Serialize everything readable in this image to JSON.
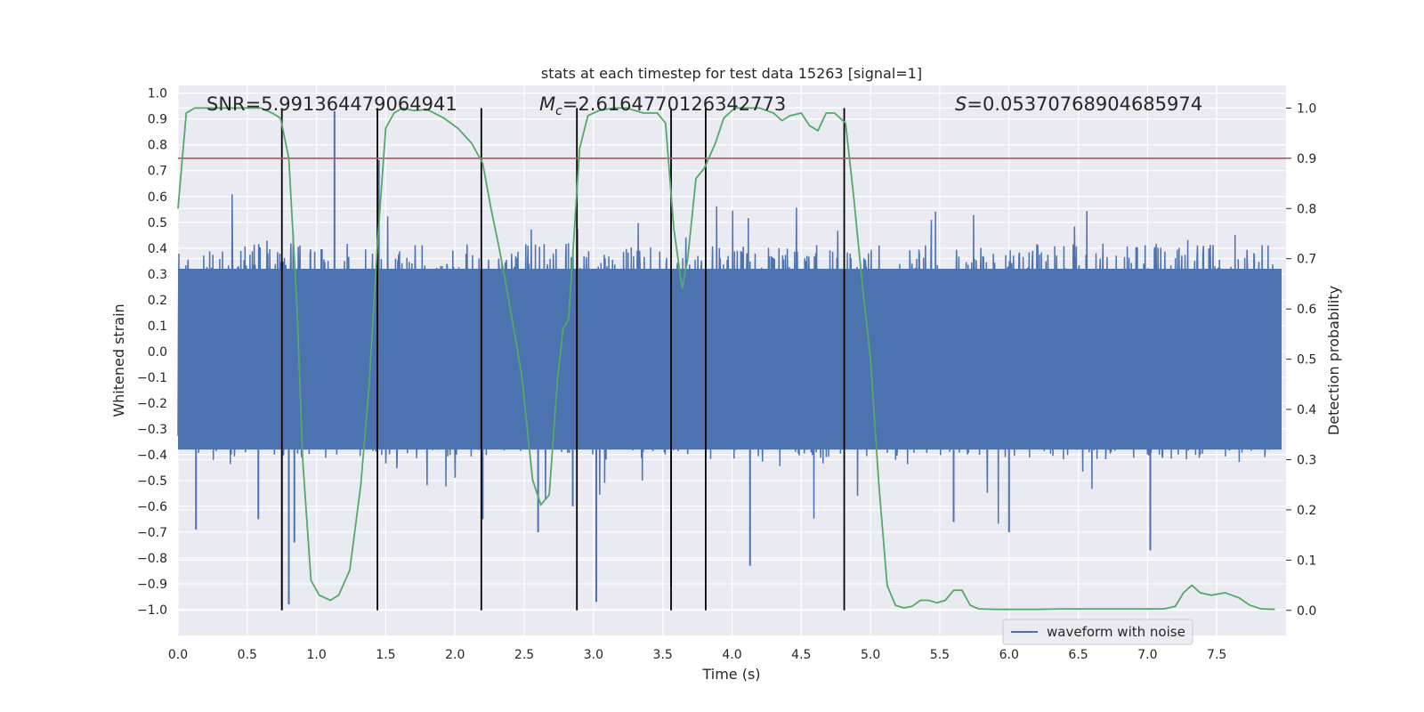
{
  "chart_data": {
    "type": "line",
    "title": "stats at each timestep for test data 15263 [signal=1]",
    "xlabel": "Time (s)",
    "ylabel": "Whitened strain",
    "y2label": "Detection probability",
    "xlim": [
      0.0,
      8.0
    ],
    "ylim": [
      -1.1,
      1.03
    ],
    "y2lim": [
      -0.05,
      1.045
    ],
    "xticks": [
      "0.0",
      "0.5",
      "1.0",
      "1.5",
      "2.0",
      "2.5",
      "3.0",
      "3.5",
      "4.0",
      "4.5",
      "5.0",
      "5.5",
      "6.0",
      "6.5",
      "7.0",
      "7.5"
    ],
    "yticks": [
      "-1.0",
      "-0.9",
      "-0.8",
      "-0.7",
      "-0.6",
      "-0.5",
      "-0.4",
      "-0.3",
      "-0.2",
      "-0.1",
      "0.0",
      "0.1",
      "0.2",
      "0.3",
      "0.4",
      "0.5",
      "0.6",
      "0.7",
      "0.8",
      "0.9",
      "1.0"
    ],
    "y2ticks": [
      "0.0",
      "0.1",
      "0.2",
      "0.3",
      "0.4",
      "0.5",
      "0.6",
      "0.7",
      "0.8",
      "0.9",
      "1.0"
    ],
    "grid": true,
    "legend_placement": "lower-right",
    "annotations": {
      "snr": "SNR=5.991364479064941",
      "mc_symbol": "M",
      "mc_sub": "c",
      "mc_value": "=2.6164770126342773",
      "s_symbol": "S",
      "s_value": "=0.05370768904685974"
    },
    "series": [
      {
        "name": "waveform with noise",
        "axis": "left",
        "color": "#4c72b0",
        "kind": "noise",
        "envelope": 0.42,
        "extreme_peaks": [
          [
            0.75,
            -1.0
          ],
          [
            0.8,
            -0.98
          ],
          [
            0.84,
            -0.74
          ],
          [
            1.13,
            0.93
          ],
          [
            1.45,
            0.74
          ],
          [
            2.2,
            -0.65
          ],
          [
            2.6,
            -0.7
          ],
          [
            2.85,
            -0.6
          ],
          [
            3.02,
            -0.97
          ],
          [
            3.56,
            -0.91
          ],
          [
            4.13,
            -0.83
          ],
          [
            6.0,
            -0.7
          ],
          [
            7.02,
            -0.77
          ],
          [
            0.13,
            -0.69
          ],
          [
            0.58,
            -0.65
          ],
          [
            5.6,
            -0.66
          ]
        ]
      },
      {
        "name": "",
        "axis": "right",
        "color": "#55a868",
        "x": [
          0.0,
          0.06,
          0.12,
          0.2,
          0.3,
          0.4,
          0.5,
          0.6,
          0.68,
          0.74,
          0.8,
          0.86,
          0.9,
          0.96,
          1.02,
          1.1,
          1.16,
          1.24,
          1.32,
          1.38,
          1.44,
          1.5,
          1.56,
          1.62,
          1.7,
          1.8,
          1.92,
          2.02,
          2.12,
          2.2,
          2.26,
          2.32,
          2.4,
          2.48,
          2.56,
          2.62,
          2.68,
          2.74,
          2.78,
          2.82,
          2.9,
          2.96,
          3.04,
          3.14,
          3.24,
          3.36,
          3.46,
          3.52,
          3.58,
          3.64,
          3.68,
          3.74,
          3.8,
          3.88,
          3.94,
          4.02,
          4.1,
          4.2,
          4.3,
          4.36,
          4.42,
          4.5,
          4.56,
          4.62,
          4.68,
          4.74,
          4.82,
          4.88,
          4.94,
          5.0,
          5.06,
          5.12,
          5.18,
          5.24,
          5.3,
          5.36,
          5.42,
          5.48,
          5.54,
          5.6,
          5.66,
          5.72,
          5.78,
          5.9,
          6.0,
          6.2,
          6.4,
          6.6,
          6.8,
          7.0,
          7.12,
          7.2,
          7.26,
          7.32,
          7.38,
          7.46,
          7.56,
          7.66,
          7.74,
          7.82,
          7.92
        ],
        "y": [
          0.8,
          0.99,
          1.0,
          1.0,
          1.0,
          1.0,
          1.0,
          1.0,
          0.99,
          0.98,
          0.9,
          0.6,
          0.3,
          0.06,
          0.03,
          0.02,
          0.03,
          0.08,
          0.25,
          0.45,
          0.73,
          0.96,
          0.99,
          1.0,
          0.995,
          0.997,
          0.98,
          0.96,
          0.93,
          0.89,
          0.8,
          0.72,
          0.6,
          0.47,
          0.26,
          0.21,
          0.23,
          0.46,
          0.56,
          0.58,
          0.92,
          0.985,
          0.995,
          1.0,
          1.0,
          0.99,
          0.99,
          0.97,
          0.76,
          0.64,
          0.7,
          0.86,
          0.88,
          0.93,
          0.98,
          1.0,
          1.0,
          1.0,
          0.99,
          0.975,
          0.985,
          0.99,
          0.965,
          0.955,
          0.99,
          0.99,
          0.97,
          0.82,
          0.65,
          0.5,
          0.25,
          0.05,
          0.01,
          0.005,
          0.008,
          0.02,
          0.02,
          0.015,
          0.02,
          0.04,
          0.04,
          0.01,
          0.003,
          0.002,
          0.002,
          0.002,
          0.003,
          0.003,
          0.003,
          0.003,
          0.003,
          0.008,
          0.035,
          0.05,
          0.035,
          0.03,
          0.035,
          0.025,
          0.01,
          0.003,
          0.002
        ]
      }
    ],
    "threshold": {
      "axis": "right",
      "value": 0.9,
      "color": "#c44e52"
    },
    "vertical_markers": {
      "x": [
        0.75,
        1.44,
        2.19,
        2.88,
        3.56,
        3.81,
        4.81
      ],
      "color": "#000000"
    }
  }
}
